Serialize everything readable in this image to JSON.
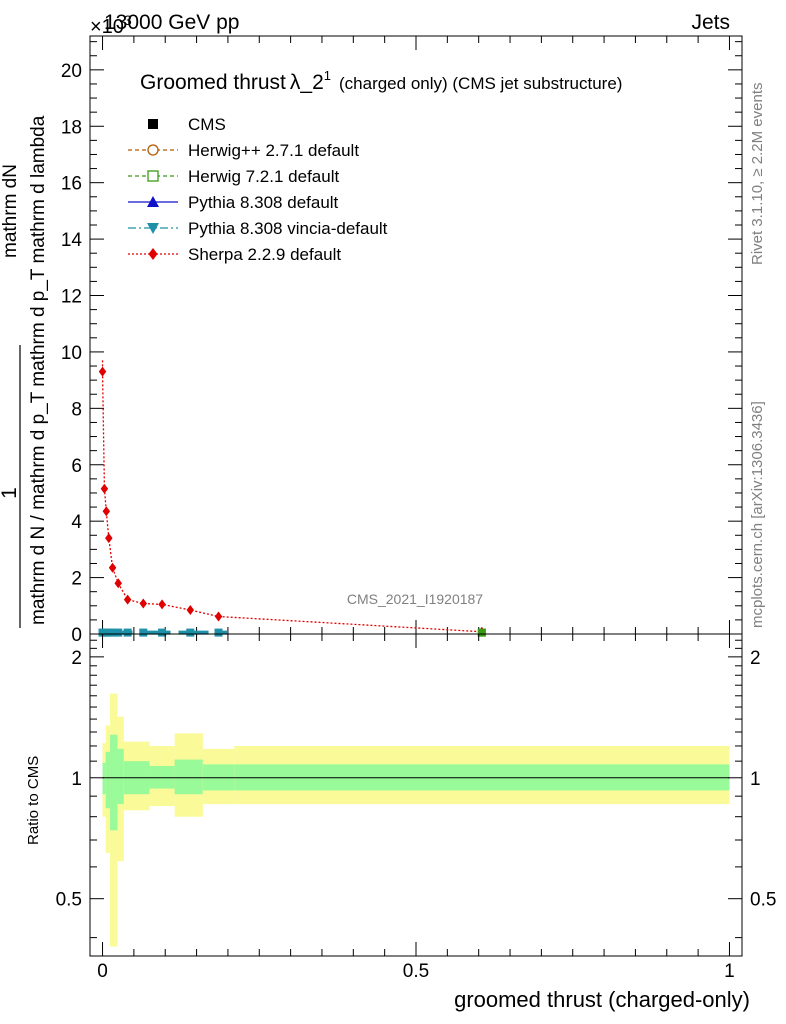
{
  "header": {
    "exponent": "×10",
    "exponent_power": "3",
    "energy_label": "13000 GeV pp",
    "category": "Jets"
  },
  "plot": {
    "title_main": "Groomed thrust",
    "title_lambda": "λ_2",
    "title_sup": "1",
    "title_rest": "(charged only) (CMS jet substructure)",
    "ylabel_top": "1",
    "ylabel_num": "mathrm dN",
    "ylabel_den": "mathrm d N / mathrm d p_T mathrm d p_T mathrm d lambda",
    "watermark": "CMS_2021_I1920187",
    "side_rivet": "Rivet 3.1.10, ≥ 2.2M events",
    "side_site": "mcplots.cern.ch [arXiv:1306.3436]",
    "ratio_ylabel": "Ratio to CMS",
    "xlabel": "groomed thrust (charged-only)"
  },
  "legend": [
    {
      "label": "CMS",
      "color": "#000000",
      "marker": "square"
    },
    {
      "label": "Herwig++ 2.7.1 default",
      "color": "#b35900",
      "marker": "circle-open"
    },
    {
      "label": "Herwig 7.2.1 default",
      "color": "#3a9a14",
      "marker": "square-open"
    },
    {
      "label": "Pythia 8.308 default",
      "color": "#1010c8",
      "marker": "triangle-up"
    },
    {
      "label": "Pythia 8.308 vincia-default",
      "color": "#1e90a8",
      "marker": "triangle-down"
    },
    {
      "label": "Sherpa 2.2.9 default",
      "color": "#e00000",
      "marker": "diamond"
    }
  ],
  "chart_data": [
    {
      "type": "line",
      "title": "Groomed thrust λ_2^1 (charged only) (CMS jet substructure)",
      "xlabel": "groomed thrust (charged-only)",
      "ylabel": "1 / (mathrm d N / mathrm d p_T mathrm d p_T mathrm d lambda) mathrm dN",
      "y_multiplier": "×10^3",
      "xlim": [
        -0.02,
        1.02
      ],
      "ylim": [
        0,
        21.2
      ],
      "x_ticks": [
        0,
        0.5,
        1
      ],
      "y_ticks": [
        0,
        2,
        4,
        6,
        8,
        10,
        12,
        14,
        16,
        18,
        20
      ],
      "series": [
        {
          "name": "Sherpa 2.2.9 default",
          "color": "#e00000",
          "x": [
            0.0,
            0.003,
            0.006,
            0.01,
            0.016,
            0.025,
            0.04,
            0.065,
            0.095,
            0.14,
            0.185,
            0.605
          ],
          "y": [
            9.3,
            5.15,
            4.35,
            3.4,
            2.35,
            1.8,
            1.22,
            1.08,
            1.05,
            0.85,
            0.62,
            0.08
          ]
        },
        {
          "name": "CMS",
          "color": "#000000",
          "x": [
            0.0,
            0.003,
            0.006,
            0.01,
            0.016,
            0.025,
            0.04,
            0.065,
            0.095,
            0.14,
            0.185,
            0.605
          ],
          "y": [
            0.05,
            0.05,
            0.05,
            0.05,
            0.05,
            0.05,
            0.05,
            0.05,
            0.05,
            0.05,
            0.05,
            0.05
          ]
        }
      ],
      "grid": false,
      "legend_position": "top-left"
    },
    {
      "type": "area",
      "ylabel": "Ratio to CMS",
      "xlim": [
        -0.02,
        1.02
      ],
      "ylim": [
        0.36,
        2.28
      ],
      "y_ticks": [
        0.5,
        1,
        2
      ],
      "reference_line": 1,
      "bins": [
        {
          "x0": 0.0,
          "x1": 0.005,
          "stat_lo": 0.91,
          "stat_hi": 1.09,
          "tot_lo": 0.8,
          "tot_hi": 1.22
        },
        {
          "x0": 0.005,
          "x1": 0.012,
          "stat_lo": 0.84,
          "stat_hi": 1.16,
          "tot_lo": 0.65,
          "tot_hi": 1.35
        },
        {
          "x0": 0.012,
          "x1": 0.024,
          "stat_lo": 0.74,
          "stat_hi": 1.28,
          "tot_lo": 0.38,
          "tot_hi": 1.62
        },
        {
          "x0": 0.024,
          "x1": 0.034,
          "stat_lo": 0.86,
          "stat_hi": 1.18,
          "tot_lo": 0.62,
          "tot_hi": 1.42
        },
        {
          "x0": 0.034,
          "x1": 0.075,
          "stat_lo": 0.91,
          "stat_hi": 1.1,
          "tot_lo": 0.83,
          "tot_hi": 1.23
        },
        {
          "x0": 0.075,
          "x1": 0.115,
          "stat_lo": 0.94,
          "stat_hi": 1.07,
          "tot_lo": 0.85,
          "tot_hi": 1.2
        },
        {
          "x0": 0.115,
          "x1": 0.16,
          "stat_lo": 0.91,
          "stat_hi": 1.11,
          "tot_lo": 0.8,
          "tot_hi": 1.29
        },
        {
          "x0": 0.16,
          "x1": 0.21,
          "stat_lo": 0.93,
          "stat_hi": 1.08,
          "tot_lo": 0.86,
          "tot_hi": 1.18
        },
        {
          "x0": 0.21,
          "x1": 1.0,
          "stat_lo": 0.93,
          "stat_hi": 1.08,
          "tot_lo": 0.86,
          "tot_hi": 1.2
        }
      ],
      "colors": {
        "stat": "#98fa98",
        "total": "#fafa98",
        "reference": "#000000"
      }
    }
  ]
}
